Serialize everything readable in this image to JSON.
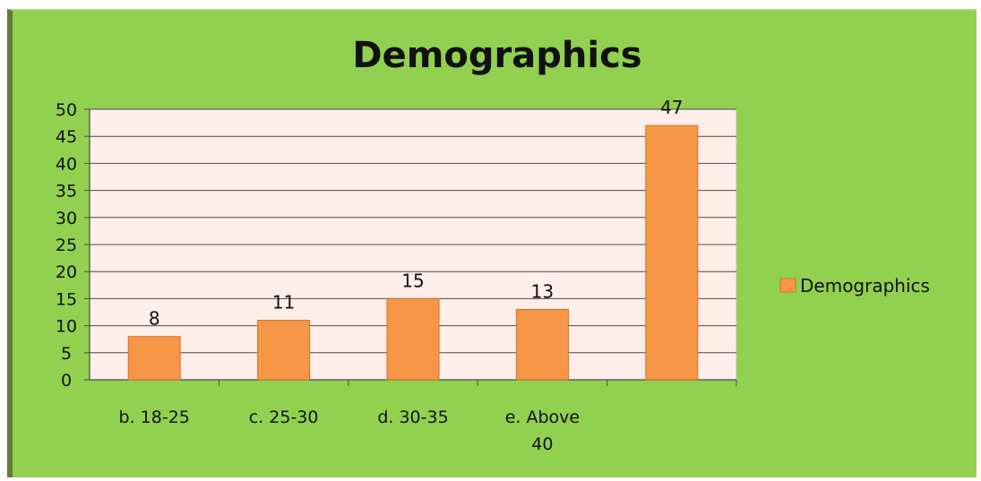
{
  "chart_data": {
    "type": "bar",
    "title": "Demographics",
    "categories": [
      "b. 18-25",
      "c. 25-30",
      "d. 30-35",
      "e. Above 40",
      ""
    ],
    "category_lines": [
      [
        "b. 18-25"
      ],
      [
        "c. 25-30"
      ],
      [
        "d. 30-35"
      ],
      [
        "e. Above",
        "40"
      ],
      []
    ],
    "series": [
      {
        "name": "Demographics",
        "values": [
          8,
          11,
          15,
          13,
          47
        ]
      }
    ],
    "ylim": [
      0,
      50
    ],
    "ytick_step": 5,
    "grid": true,
    "legend_position": "right",
    "colors": {
      "background": "#92d050",
      "plot_area": "#fdeee9",
      "bar": "#f79646",
      "bar_edge": "#c9742f",
      "grid": "#4a4a4a"
    }
  }
}
